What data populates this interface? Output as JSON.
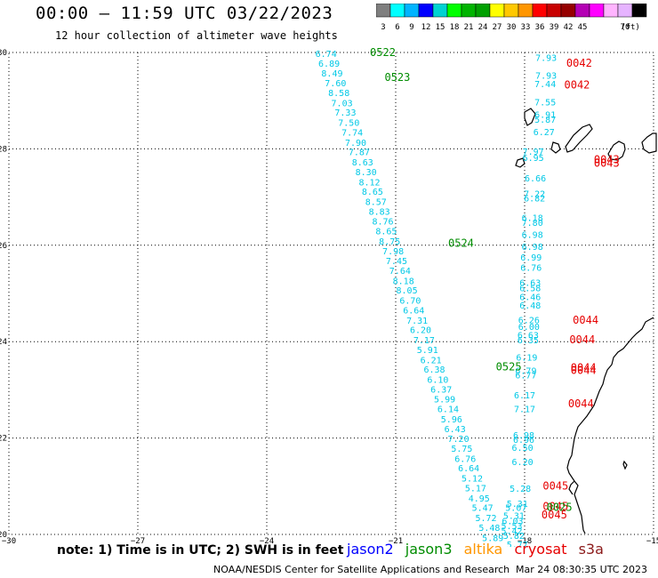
{
  "header": {
    "title": "00:00 — 11:59 UTC 03/22/2023",
    "subtitle": "12 hour collection of altimeter wave heights"
  },
  "colorbar": {
    "ticks": [
      "3",
      "6",
      "9",
      "12",
      "15",
      "18",
      "21",
      "24",
      "27",
      "30",
      "33",
      "36",
      "39",
      "42",
      "45",
      "70"
    ],
    "unit": "(ft)",
    "colors": [
      "#7f7f7f",
      "#00ffff",
      "#00b4ff",
      "#0000ff",
      "#00d2d2",
      "#00ff00",
      "#00b400",
      "#00a000",
      "#ffff00",
      "#ffc800",
      "#ff9600",
      "#ff0000",
      "#c80000",
      "#960000",
      "#b400b4",
      "#ff00ff",
      "#ffb4ff",
      "#e6b4ff",
      "#000000"
    ]
  },
  "map": {
    "axis": {
      "x_ticks": [
        "−30",
        "−27",
        "−24",
        "−21",
        "−18",
        "−15"
      ],
      "y_ticks": [
        "30",
        "28",
        "26",
        "24",
        "22",
        "20"
      ],
      "lon_range": [
        -30,
        -15
      ],
      "lat_range": [
        20,
        30
      ]
    },
    "colors": {
      "track_label": "#00c8e6",
      "pass_green": "#008c00",
      "pass_red": "#e60000",
      "coast": "#000000",
      "grid": "#000000"
    },
    "track_a": [
      {
        "lon": -22.62,
        "lat": 29.98,
        "v": "6.74"
      },
      {
        "lon": -22.55,
        "lat": 29.78,
        "v": "6.89"
      },
      {
        "lon": -22.48,
        "lat": 29.58,
        "v": "8.49"
      },
      {
        "lon": -22.4,
        "lat": 29.37,
        "v": "7.60"
      },
      {
        "lon": -22.32,
        "lat": 29.17,
        "v": "8.58"
      },
      {
        "lon": -22.25,
        "lat": 28.96,
        "v": "7.03"
      },
      {
        "lon": -22.17,
        "lat": 28.76,
        "v": "7.33"
      },
      {
        "lon": -22.09,
        "lat": 28.55,
        "v": "7.50"
      },
      {
        "lon": -22.01,
        "lat": 28.35,
        "v": "7.74"
      },
      {
        "lon": -21.93,
        "lat": 28.14,
        "v": "7.90"
      },
      {
        "lon": -21.85,
        "lat": 27.94,
        "v": "7.87"
      },
      {
        "lon": -21.77,
        "lat": 27.73,
        "v": "8.63"
      },
      {
        "lon": -21.69,
        "lat": 27.53,
        "v": "8.30"
      },
      {
        "lon": -21.61,
        "lat": 27.32,
        "v": "8.12"
      },
      {
        "lon": -21.54,
        "lat": 27.12,
        "v": "8.65"
      },
      {
        "lon": -21.46,
        "lat": 26.91,
        "v": "8.57"
      },
      {
        "lon": -21.38,
        "lat": 26.71,
        "v": "8.83"
      },
      {
        "lon": -21.3,
        "lat": 26.5,
        "v": "8.76"
      },
      {
        "lon": -21.22,
        "lat": 26.3,
        "v": "8.65"
      },
      {
        "lon": -21.14,
        "lat": 26.09,
        "v": "8.75"
      },
      {
        "lon": -21.06,
        "lat": 25.89,
        "v": "7.98"
      },
      {
        "lon": -20.98,
        "lat": 25.68,
        "v": "7.45"
      },
      {
        "lon": -20.9,
        "lat": 25.48,
        "v": "7.64"
      },
      {
        "lon": -20.82,
        "lat": 25.27,
        "v": "8.18"
      },
      {
        "lon": -20.74,
        "lat": 25.07,
        "v": "8.05"
      },
      {
        "lon": -20.66,
        "lat": 24.86,
        "v": "6.70"
      },
      {
        "lon": -20.58,
        "lat": 24.66,
        "v": "6.64"
      },
      {
        "lon": -20.5,
        "lat": 24.45,
        "v": "7.31"
      },
      {
        "lon": -20.42,
        "lat": 24.25,
        "v": "6.20"
      },
      {
        "lon": -20.34,
        "lat": 24.04,
        "v": "7.17"
      },
      {
        "lon": -20.26,
        "lat": 23.84,
        "v": "5.91"
      },
      {
        "lon": -20.18,
        "lat": 23.63,
        "v": "6.21"
      },
      {
        "lon": -20.1,
        "lat": 23.43,
        "v": "6.38"
      },
      {
        "lon": -20.02,
        "lat": 23.22,
        "v": "6.10"
      },
      {
        "lon": -19.94,
        "lat": 23.02,
        "v": "6.37"
      },
      {
        "lon": -19.86,
        "lat": 22.81,
        "v": "5.99"
      },
      {
        "lon": -19.78,
        "lat": 22.61,
        "v": "6.14"
      },
      {
        "lon": -19.7,
        "lat": 22.4,
        "v": "5.96"
      },
      {
        "lon": -19.62,
        "lat": 22.2,
        "v": "6.43"
      },
      {
        "lon": -19.54,
        "lat": 21.99,
        "v": "7.20"
      },
      {
        "lon": -19.46,
        "lat": 21.79,
        "v": "5.75"
      },
      {
        "lon": -19.38,
        "lat": 21.58,
        "v": "6.76"
      },
      {
        "lon": -19.3,
        "lat": 21.38,
        "v": "6.64"
      },
      {
        "lon": -19.22,
        "lat": 21.17,
        "v": "5.12"
      },
      {
        "lon": -19.14,
        "lat": 20.97,
        "v": "5.17"
      },
      {
        "lon": -19.06,
        "lat": 20.76,
        "v": "4.95"
      },
      {
        "lon": -18.98,
        "lat": 20.56,
        "v": "5.47"
      },
      {
        "lon": -18.9,
        "lat": 20.35,
        "v": "5.72"
      },
      {
        "lon": -18.82,
        "lat": 20.15,
        "v": "5.48"
      },
      {
        "lon": -18.74,
        "lat": 19.94,
        "v": "5.89"
      }
    ],
    "track_b": [
      {
        "lon": -17.5,
        "lat": 29.9,
        "v": "7.93"
      },
      {
        "lon": -17.5,
        "lat": 29.53,
        "v": "7.93"
      },
      {
        "lon": -17.52,
        "lat": 29.35,
        "v": "7.44"
      },
      {
        "lon": -17.52,
        "lat": 28.98,
        "v": "7.55"
      },
      {
        "lon": -17.52,
        "lat": 28.72,
        "v": "6.91"
      },
      {
        "lon": -17.52,
        "lat": 28.62,
        "v": "5.87"
      },
      {
        "lon": -17.55,
        "lat": 28.36,
        "v": "6.27"
      },
      {
        "lon": -17.8,
        "lat": 27.95,
        "v": "7.97"
      },
      {
        "lon": -17.8,
        "lat": 27.82,
        "v": "6.95"
      },
      {
        "lon": -17.75,
        "lat": 27.4,
        "v": "6.66"
      },
      {
        "lon": -17.77,
        "lat": 27.08,
        "v": "7.22"
      },
      {
        "lon": -17.77,
        "lat": 26.98,
        "v": "6.82"
      },
      {
        "lon": -17.82,
        "lat": 26.58,
        "v": "6.18"
      },
      {
        "lon": -17.82,
        "lat": 26.48,
        "v": "7.80"
      },
      {
        "lon": -17.82,
        "lat": 26.23,
        "v": "6.98"
      },
      {
        "lon": -17.82,
        "lat": 25.98,
        "v": "6.98"
      },
      {
        "lon": -17.85,
        "lat": 25.76,
        "v": "6.99"
      },
      {
        "lon": -17.85,
        "lat": 25.54,
        "v": "6.76"
      },
      {
        "lon": -17.87,
        "lat": 25.23,
        "v": "6.63"
      },
      {
        "lon": -17.87,
        "lat": 25.12,
        "v": "6.58"
      },
      {
        "lon": -17.87,
        "lat": 24.94,
        "v": "6.46"
      },
      {
        "lon": -17.87,
        "lat": 24.76,
        "v": "6.48"
      },
      {
        "lon": -17.9,
        "lat": 24.46,
        "v": "6.26"
      },
      {
        "lon": -17.9,
        "lat": 24.32,
        "v": "6.00"
      },
      {
        "lon": -17.92,
        "lat": 24.14,
        "v": "6.63"
      },
      {
        "lon": -17.92,
        "lat": 24.04,
        "v": "6.35"
      },
      {
        "lon": -17.95,
        "lat": 23.68,
        "v": "6.19"
      },
      {
        "lon": -17.97,
        "lat": 23.4,
        "v": "6.79"
      },
      {
        "lon": -17.97,
        "lat": 23.31,
        "v": "6.77"
      },
      {
        "lon": -18.0,
        "lat": 22.9,
        "v": "6.17"
      },
      {
        "lon": -18.0,
        "lat": 22.61,
        "v": "7.17"
      },
      {
        "lon": -18.02,
        "lat": 22.07,
        "v": "6.98"
      },
      {
        "lon": -18.02,
        "lat": 21.97,
        "v": "6.96"
      },
      {
        "lon": -18.05,
        "lat": 21.81,
        "v": "6.50"
      },
      {
        "lon": -18.05,
        "lat": 21.51,
        "v": "6.20"
      },
      {
        "lon": -18.1,
        "lat": 20.96,
        "v": "5.28"
      },
      {
        "lon": -18.17,
        "lat": 20.65,
        "v": "5.31"
      },
      {
        "lon": -18.2,
        "lat": 20.56,
        "v": "5.07"
      },
      {
        "lon": -18.25,
        "lat": 20.4,
        "v": "5.31"
      },
      {
        "lon": -18.28,
        "lat": 20.29,
        "v": "6.03"
      },
      {
        "lon": -18.3,
        "lat": 20.18,
        "v": "5.53"
      },
      {
        "lon": -18.3,
        "lat": 20.08,
        "v": "5.42"
      },
      {
        "lon": -18.25,
        "lat": 19.98,
        "v": "5.82"
      },
      {
        "lon": -18.17,
        "lat": 19.8,
        "v": "5.77"
      }
    ],
    "passes": [
      {
        "lon": -21.3,
        "lat": 30.0,
        "t": "0522",
        "c": "green"
      },
      {
        "lon": -20.96,
        "lat": 29.48,
        "t": "0523",
        "c": "green"
      },
      {
        "lon": -19.48,
        "lat": 26.04,
        "t": "0524",
        "c": "green"
      },
      {
        "lon": -18.37,
        "lat": 23.48,
        "t": "0525",
        "c": "green"
      },
      {
        "lon": -16.73,
        "lat": 29.78,
        "t": "0042",
        "c": "red"
      },
      {
        "lon": -16.78,
        "lat": 29.33,
        "t": "0042",
        "c": "red"
      },
      {
        "lon": -16.09,
        "lat": 27.78,
        "t": "0043",
        "c": "red"
      },
      {
        "lon": -16.09,
        "lat": 27.7,
        "t": "0043",
        "c": "red"
      },
      {
        "lon": -16.58,
        "lat": 24.45,
        "t": "0044",
        "c": "red"
      },
      {
        "lon": -16.66,
        "lat": 24.04,
        "t": "0044",
        "c": "red"
      },
      {
        "lon": -16.63,
        "lat": 23.46,
        "t": "0044",
        "c": "red"
      },
      {
        "lon": -16.63,
        "lat": 23.4,
        "t": "0044",
        "c": "red"
      },
      {
        "lon": -16.69,
        "lat": 22.71,
        "t": "0044",
        "c": "red"
      },
      {
        "lon": -17.28,
        "lat": 21.01,
        "t": "0045",
        "c": "red"
      },
      {
        "lon": -17.28,
        "lat": 20.58,
        "t": "0045",
        "c": "red"
      },
      {
        "lon": -17.19,
        "lat": 20.56,
        "t": "0025",
        "c": "green"
      },
      {
        "lon": -17.31,
        "lat": 20.41,
        "t": "0045",
        "c": "red"
      }
    ]
  },
  "note": "note: 1) Time is in UTC; 2) SWH is in feet",
  "legend": [
    {
      "label": "jason2",
      "color": "#0000ff"
    },
    {
      "label": "jason3",
      "color": "#008c00"
    },
    {
      "label": "altika",
      "color": "#ff9600"
    },
    {
      "label": "cryosat",
      "color": "#e60000"
    },
    {
      "label": "s3a",
      "color": "#8b1a1a"
    }
  ],
  "footer": {
    "credit": "NOAA/NESDIS Center for Satellite Applications and Research",
    "timestamp": "Mar 24 08:30:35 UTC 2023"
  }
}
